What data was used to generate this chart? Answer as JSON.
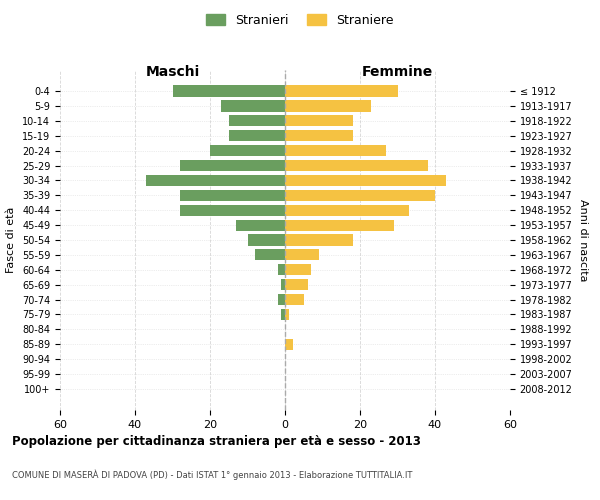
{
  "age_groups": [
    "0-4",
    "5-9",
    "10-14",
    "15-19",
    "20-24",
    "25-29",
    "30-34",
    "35-39",
    "40-44",
    "45-49",
    "50-54",
    "55-59",
    "60-64",
    "65-69",
    "70-74",
    "75-79",
    "80-84",
    "85-89",
    "90-94",
    "95-99",
    "100+"
  ],
  "birth_years": [
    "2008-2012",
    "2003-2007",
    "1998-2002",
    "1993-1997",
    "1988-1992",
    "1983-1987",
    "1978-1982",
    "1973-1977",
    "1968-1972",
    "1963-1967",
    "1958-1962",
    "1953-1957",
    "1948-1952",
    "1943-1947",
    "1938-1942",
    "1933-1937",
    "1928-1932",
    "1923-1927",
    "1918-1922",
    "1913-1917",
    "≤ 1912"
  ],
  "maschi": [
    30,
    17,
    15,
    15,
    20,
    28,
    37,
    28,
    28,
    13,
    10,
    8,
    2,
    1,
    2,
    1,
    0,
    0,
    0,
    0,
    0
  ],
  "femmine": [
    30,
    23,
    18,
    18,
    27,
    38,
    43,
    40,
    33,
    29,
    18,
    9,
    7,
    6,
    5,
    1,
    0,
    2,
    0,
    0,
    0
  ],
  "color_maschi": "#6a9e5f",
  "color_femmine": "#f5c242",
  "background_color": "#ffffff",
  "grid_color": "#cccccc",
  "title": "Popolazione per cittadinanza straniera per età e sesso - 2013",
  "subtitle": "COMUNE DI MASERÀ DI PADOVA (PD) - Dati ISTAT 1° gennaio 2013 - Elaborazione TUTTITALIA.IT",
  "ylabel_left": "Fasce di età",
  "ylabel_right": "Anni di nascita",
  "xlabel_left": "Maschi",
  "xlabel_right": "Femmine",
  "legend_maschi": "Stranieri",
  "legend_femmine": "Straniere",
  "xlim": 60
}
